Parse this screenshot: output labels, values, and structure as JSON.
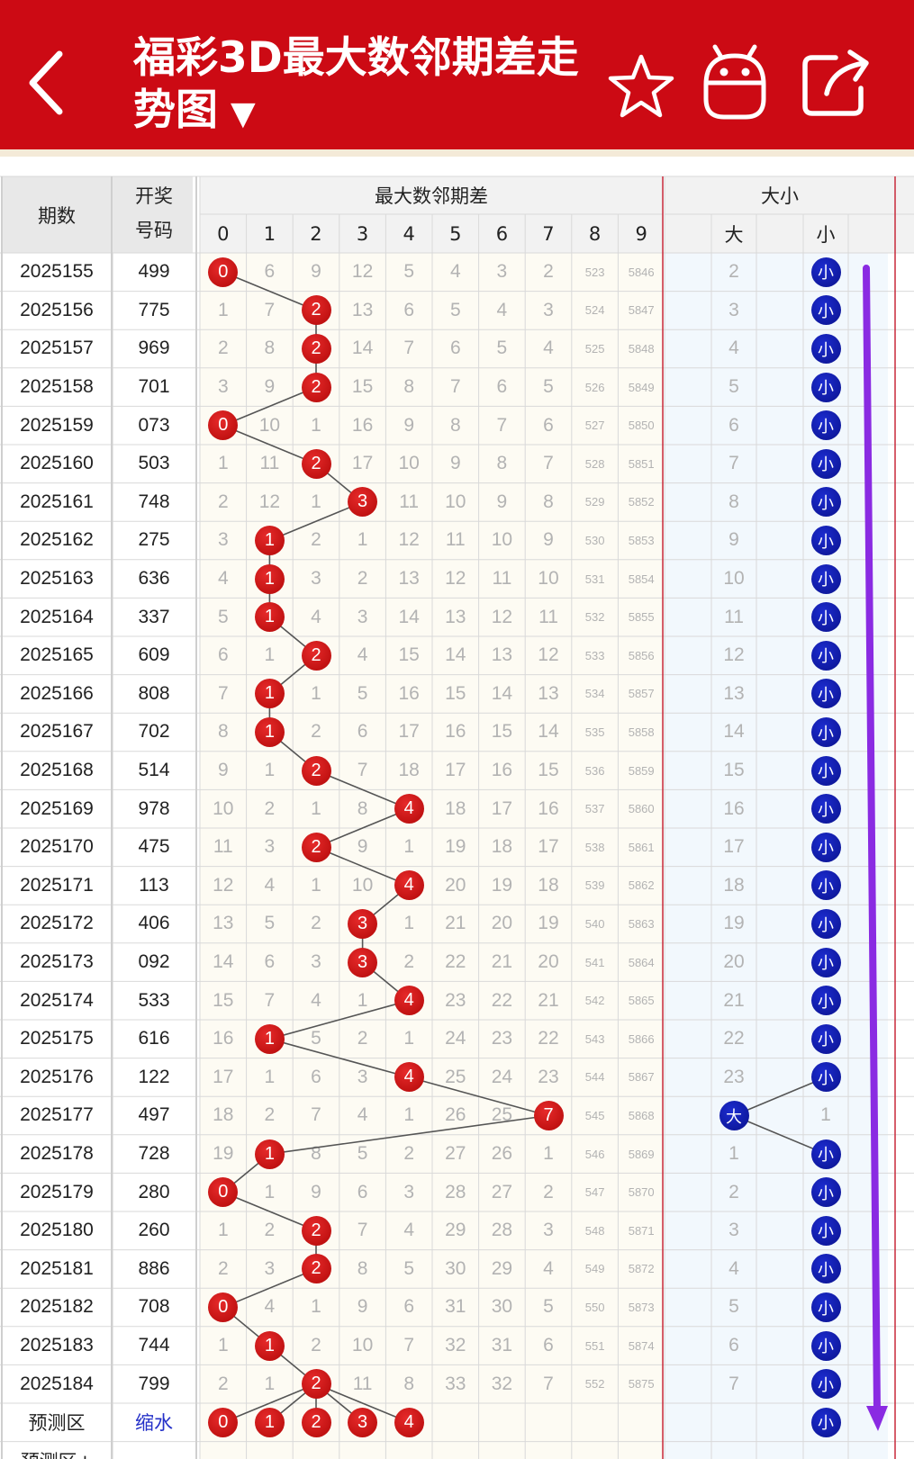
{
  "header": {
    "title": "福彩3D最大数邻期差走势图",
    "dropdown_icon": "▼",
    "icons": [
      "back-icon",
      "star-icon",
      "robot-icon",
      "share-icon"
    ]
  },
  "table": {
    "col_period": "期数",
    "col_number_line1": "开奖",
    "col_number_line2": "号码",
    "group_diff": "最大数邻期差",
    "group_size": "大小",
    "digits": [
      "0",
      "1",
      "2",
      "3",
      "4",
      "5",
      "6",
      "7",
      "8",
      "9"
    ],
    "size_labels": [
      "大",
      "小"
    ],
    "rows": [
      {
        "period": "2025155",
        "number": "499",
        "cells": [
          "0",
          "6",
          "9",
          "12",
          "5",
          "4",
          "3",
          "2",
          "523",
          "5846"
        ],
        "hit": 0,
        "size_cells": [
          "2",
          "小"
        ],
        "size_hit": 1
      },
      {
        "period": "2025156",
        "number": "775",
        "cells": [
          "1",
          "7",
          "2",
          "13",
          "6",
          "5",
          "4",
          "3",
          "524",
          "5847"
        ],
        "hit": 2,
        "size_cells": [
          "3",
          "小"
        ],
        "size_hit": 1
      },
      {
        "period": "2025157",
        "number": "969",
        "cells": [
          "2",
          "8",
          "2",
          "14",
          "7",
          "6",
          "5",
          "4",
          "525",
          "5848"
        ],
        "hit": 2,
        "size_cells": [
          "4",
          "小"
        ],
        "size_hit": 1
      },
      {
        "period": "2025158",
        "number": "701",
        "cells": [
          "3",
          "9",
          "2",
          "15",
          "8",
          "7",
          "6",
          "5",
          "526",
          "5849"
        ],
        "hit": 2,
        "size_cells": [
          "5",
          "小"
        ],
        "size_hit": 1
      },
      {
        "period": "2025159",
        "number": "073",
        "cells": [
          "0",
          "10",
          "1",
          "16",
          "9",
          "8",
          "7",
          "6",
          "527",
          "5850"
        ],
        "hit": 0,
        "size_cells": [
          "6",
          "小"
        ],
        "size_hit": 1
      },
      {
        "period": "2025160",
        "number": "503",
        "cells": [
          "1",
          "11",
          "2",
          "17",
          "10",
          "9",
          "8",
          "7",
          "528",
          "5851"
        ],
        "hit": 2,
        "size_cells": [
          "7",
          "小"
        ],
        "size_hit": 1
      },
      {
        "period": "2025161",
        "number": "748",
        "cells": [
          "2",
          "12",
          "1",
          "3",
          "11",
          "10",
          "9",
          "8",
          "529",
          "5852"
        ],
        "hit": 3,
        "size_cells": [
          "8",
          "小"
        ],
        "size_hit": 1
      },
      {
        "period": "2025162",
        "number": "275",
        "cells": [
          "3",
          "1",
          "2",
          "1",
          "12",
          "11",
          "10",
          "9",
          "530",
          "5853"
        ],
        "hit": 1,
        "size_cells": [
          "9",
          "小"
        ],
        "size_hit": 1
      },
      {
        "period": "2025163",
        "number": "636",
        "cells": [
          "4",
          "1",
          "3",
          "2",
          "13",
          "12",
          "11",
          "10",
          "531",
          "5854"
        ],
        "hit": 1,
        "size_cells": [
          "10",
          "小"
        ],
        "size_hit": 1
      },
      {
        "period": "2025164",
        "number": "337",
        "cells": [
          "5",
          "1",
          "4",
          "3",
          "14",
          "13",
          "12",
          "11",
          "532",
          "5855"
        ],
        "hit": 1,
        "size_cells": [
          "11",
          "小"
        ],
        "size_hit": 1
      },
      {
        "period": "2025165",
        "number": "609",
        "cells": [
          "6",
          "1",
          "2",
          "4",
          "15",
          "14",
          "13",
          "12",
          "533",
          "5856"
        ],
        "hit": 2,
        "size_cells": [
          "12",
          "小"
        ],
        "size_hit": 1
      },
      {
        "period": "2025166",
        "number": "808",
        "cells": [
          "7",
          "1",
          "1",
          "5",
          "16",
          "15",
          "14",
          "13",
          "534",
          "5857"
        ],
        "hit": 1,
        "size_cells": [
          "13",
          "小"
        ],
        "size_hit": 1
      },
      {
        "period": "2025167",
        "number": "702",
        "cells": [
          "8",
          "1",
          "2",
          "6",
          "17",
          "16",
          "15",
          "14",
          "535",
          "5858"
        ],
        "hit": 1,
        "size_cells": [
          "14",
          "小"
        ],
        "size_hit": 1
      },
      {
        "period": "2025168",
        "number": "514",
        "cells": [
          "9",
          "1",
          "2",
          "7",
          "18",
          "17",
          "16",
          "15",
          "536",
          "5859"
        ],
        "hit": 2,
        "size_cells": [
          "15",
          "小"
        ],
        "size_hit": 1
      },
      {
        "period": "2025169",
        "number": "978",
        "cells": [
          "10",
          "2",
          "1",
          "8",
          "4",
          "18",
          "17",
          "16",
          "537",
          "5860"
        ],
        "hit": 4,
        "size_cells": [
          "16",
          "小"
        ],
        "size_hit": 1
      },
      {
        "period": "2025170",
        "number": "475",
        "cells": [
          "11",
          "3",
          "2",
          "9",
          "1",
          "19",
          "18",
          "17",
          "538",
          "5861"
        ],
        "hit": 2,
        "size_cells": [
          "17",
          "小"
        ],
        "size_hit": 1
      },
      {
        "period": "2025171",
        "number": "113",
        "cells": [
          "12",
          "4",
          "1",
          "10",
          "4",
          "20",
          "19",
          "18",
          "539",
          "5862"
        ],
        "hit": 4,
        "size_cells": [
          "18",
          "小"
        ],
        "size_hit": 1
      },
      {
        "period": "2025172",
        "number": "406",
        "cells": [
          "13",
          "5",
          "2",
          "3",
          "1",
          "21",
          "20",
          "19",
          "540",
          "5863"
        ],
        "hit": 3,
        "size_cells": [
          "19",
          "小"
        ],
        "size_hit": 1
      },
      {
        "period": "2025173",
        "number": "092",
        "cells": [
          "14",
          "6",
          "3",
          "3",
          "2",
          "22",
          "21",
          "20",
          "541",
          "5864"
        ],
        "hit": 3,
        "size_cells": [
          "20",
          "小"
        ],
        "size_hit": 1
      },
      {
        "period": "2025174",
        "number": "533",
        "cells": [
          "15",
          "7",
          "4",
          "1",
          "4",
          "23",
          "22",
          "21",
          "542",
          "5865"
        ],
        "hit": 4,
        "size_cells": [
          "21",
          "小"
        ],
        "size_hit": 1
      },
      {
        "period": "2025175",
        "number": "616",
        "cells": [
          "16",
          "1",
          "5",
          "2",
          "1",
          "24",
          "23",
          "22",
          "543",
          "5866"
        ],
        "hit": 1,
        "size_cells": [
          "22",
          "小"
        ],
        "size_hit": 1
      },
      {
        "period": "2025176",
        "number": "122",
        "cells": [
          "17",
          "1",
          "6",
          "3",
          "4",
          "25",
          "24",
          "23",
          "544",
          "5867"
        ],
        "hit": 4,
        "size_cells": [
          "23",
          "小"
        ],
        "size_hit": 1
      },
      {
        "period": "2025177",
        "number": "497",
        "cells": [
          "18",
          "2",
          "7",
          "4",
          "1",
          "26",
          "25",
          "7",
          "545",
          "5868"
        ],
        "hit": 7,
        "size_cells": [
          "大",
          "1"
        ],
        "size_hit": 0
      },
      {
        "period": "2025178",
        "number": "728",
        "cells": [
          "19",
          "1",
          "8",
          "5",
          "2",
          "27",
          "26",
          "1",
          "546",
          "5869"
        ],
        "hit": 1,
        "size_cells": [
          "1",
          "小"
        ],
        "size_hit": 1
      },
      {
        "period": "2025179",
        "number": "280",
        "cells": [
          "0",
          "1",
          "9",
          "6",
          "3",
          "28",
          "27",
          "2",
          "547",
          "5870"
        ],
        "hit": 0,
        "size_cells": [
          "2",
          "小"
        ],
        "size_hit": 1
      },
      {
        "period": "2025180",
        "number": "260",
        "cells": [
          "1",
          "2",
          "2",
          "7",
          "4",
          "29",
          "28",
          "3",
          "548",
          "5871"
        ],
        "hit": 2,
        "size_cells": [
          "3",
          "小"
        ],
        "size_hit": 1
      },
      {
        "period": "2025181",
        "number": "886",
        "cells": [
          "2",
          "3",
          "2",
          "8",
          "5",
          "30",
          "29",
          "4",
          "549",
          "5872"
        ],
        "hit": 2,
        "size_cells": [
          "4",
          "小"
        ],
        "size_hit": 1
      },
      {
        "period": "2025182",
        "number": "708",
        "cells": [
          "0",
          "4",
          "1",
          "9",
          "6",
          "31",
          "30",
          "5",
          "550",
          "5873"
        ],
        "hit": 0,
        "size_cells": [
          "5",
          "小"
        ],
        "size_hit": 1
      },
      {
        "period": "2025183",
        "number": "744",
        "cells": [
          "1",
          "1",
          "2",
          "10",
          "7",
          "32",
          "31",
          "6",
          "551",
          "5874"
        ],
        "hit": 1,
        "size_cells": [
          "6",
          "小"
        ],
        "size_hit": 1
      },
      {
        "period": "2025184",
        "number": "799",
        "cells": [
          "2",
          "1",
          "2",
          "11",
          "8",
          "33",
          "32",
          "7",
          "552",
          "5875"
        ],
        "hit": 2,
        "size_cells": [
          "7",
          "小"
        ],
        "size_hit": 1
      }
    ],
    "predict_row": {
      "label": "预测区",
      "shrink": "缩水",
      "balls": [
        "0",
        "1",
        "2",
        "3",
        "4"
      ],
      "size_ball": "小"
    },
    "predict_row2_label": "预测区+"
  },
  "colors": {
    "header_red": "#cc0a14",
    "ball_red": "#c80f0f",
    "ball_blue": "#101aa8",
    "arrow_purple": "#8a2be2",
    "shrink_blue": "#2430c8"
  }
}
